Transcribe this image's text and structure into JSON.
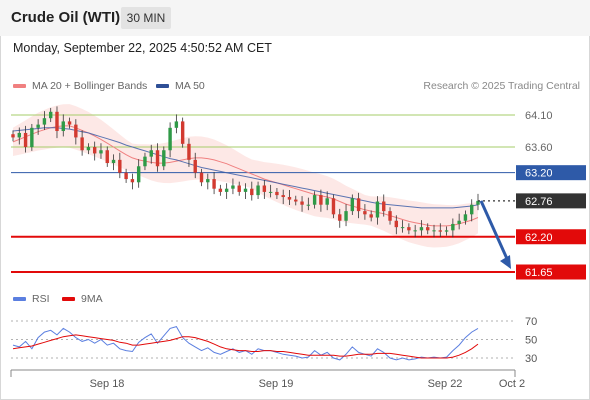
{
  "header": {
    "title": "Crude Oil (WTI)",
    "timeframe": "30 MIN"
  },
  "datetime": "Monday, September 22, 2025 4:50:52 AM CET",
  "legend_main": {
    "item1": "MA 20 + Bollinger Bands",
    "item2": "MA 50"
  },
  "credit": "Research © 2025 Trading Central",
  "legend_rsi": {
    "item1": "RSI",
    "item2": "9MA"
  },
  "colors": {
    "ma20": "#f08080",
    "ma50": "#3e5fa8",
    "band": "#fde5e3",
    "up": "#2f9a47",
    "down": "#d23a30",
    "support": "#e20a0a",
    "pivot": "#2e5aa8",
    "resistance": "#a6cc6a",
    "rsi": "#5b7fe0",
    "rsi_ma": "#e20a0a",
    "current_tag": "#333333",
    "forecast_arrow": "#2e5aa8"
  },
  "chart_data": [
    {
      "type": "candlestick",
      "title": "Crude Oil (WTI) 30 MIN",
      "y_range": [
        61.4,
        64.5
      ],
      "x_ticks": [
        "Sep 18",
        "Sep 19",
        "Sep 22",
        "Oct 2"
      ],
      "current_price": 62.76,
      "levels": [
        {
          "name": "resistance 2",
          "value": 64.1,
          "label": "64.10"
        },
        {
          "name": "resistance 1",
          "value": 63.6,
          "label": "63.60"
        },
        {
          "name": "pivot",
          "value": 63.2,
          "label": "63.20"
        },
        {
          "name": "support 1",
          "value": 62.2,
          "label": "62.20"
        },
        {
          "name": "support 2",
          "value": 61.65,
          "label": "61.65"
        }
      ],
      "forecast": {
        "from": 62.76,
        "to": 61.65,
        "direction": "down"
      },
      "close_series": [
        63.75,
        63.82,
        63.6,
        63.9,
        63.95,
        64.05,
        64.15,
        63.85,
        64.0,
        63.95,
        63.75,
        63.55,
        63.6,
        63.5,
        63.55,
        63.35,
        63.4,
        63.2,
        63.1,
        63.05,
        63.3,
        63.45,
        63.55,
        63.3,
        63.55,
        63.9,
        64.0,
        63.65,
        63.4,
        63.2,
        63.05,
        63.1,
        62.95,
        62.9,
        62.95,
        63.0,
        62.9,
        62.95,
        62.85,
        63.0,
        62.9,
        62.9,
        62.85,
        62.82,
        62.78,
        62.75,
        62.7,
        62.7,
        62.85,
        62.7,
        62.8,
        62.55,
        62.45,
        62.6,
        62.8,
        62.6,
        62.55,
        62.5,
        62.75,
        62.6,
        62.45,
        62.35,
        62.35,
        62.3,
        62.3,
        62.35,
        62.3,
        62.3,
        62.28,
        62.3,
        62.4,
        62.45,
        62.55,
        62.7,
        62.76
      ],
      "ma20": [
        63.68,
        63.72,
        63.76,
        63.8,
        63.84,
        63.87,
        63.9,
        63.92,
        63.93,
        63.93,
        63.9,
        63.86,
        63.82,
        63.77,
        63.72,
        63.66,
        63.6,
        63.54,
        63.48,
        63.43,
        63.4,
        63.38,
        63.36,
        63.35,
        63.35,
        63.36,
        63.38,
        63.4,
        63.42,
        63.43,
        63.43,
        63.42,
        63.4,
        63.37,
        63.34,
        63.3,
        63.26,
        63.22,
        63.18,
        63.14,
        63.1,
        63.07,
        63.04,
        63.01,
        62.98,
        62.95,
        62.92,
        62.89,
        62.86,
        62.84,
        62.82,
        62.79,
        62.75,
        62.71,
        62.68,
        62.65,
        62.62,
        62.6,
        62.58,
        62.56,
        62.53,
        62.5,
        62.47,
        62.44,
        62.42,
        62.4,
        62.38,
        62.37,
        62.37,
        62.37,
        62.38,
        62.4,
        62.43,
        62.46,
        62.5
      ],
      "ma50": [
        63.85,
        63.86,
        63.87,
        63.88,
        63.89,
        63.9,
        63.9,
        63.9,
        63.89,
        63.88,
        63.86,
        63.84,
        63.82,
        63.79,
        63.76,
        63.73,
        63.7,
        63.67,
        63.63,
        63.6,
        63.57,
        63.54,
        63.51,
        63.48,
        63.45,
        63.42,
        63.4,
        63.37,
        63.34,
        63.31,
        63.28,
        63.26,
        63.24,
        63.22,
        63.2,
        63.18,
        63.16,
        63.14,
        63.12,
        63.1,
        63.08,
        63.06,
        63.04,
        63.02,
        63.0,
        62.98,
        62.96,
        62.94,
        62.92,
        62.9,
        62.88,
        62.86,
        62.84,
        62.82,
        62.8,
        62.78,
        62.76,
        62.74,
        62.72,
        62.71,
        62.7,
        62.69,
        62.68,
        62.67,
        62.66,
        62.65,
        62.65,
        62.65,
        62.65,
        62.65,
        62.65,
        62.66,
        62.67,
        62.68,
        62.7
      ],
      "legend": [
        "MA 20 + Bollinger Bands",
        "MA 50"
      ]
    },
    {
      "type": "line",
      "title": "RSI",
      "y_ticks": [
        70,
        50,
        30
      ],
      "y_range": [
        20,
        80
      ],
      "series": [
        {
          "name": "RSI",
          "values": [
            44,
            42,
            48,
            40,
            52,
            58,
            60,
            55,
            62,
            58,
            52,
            48,
            50,
            46,
            50,
            44,
            46,
            40,
            38,
            37,
            47,
            52,
            56,
            46,
            54,
            62,
            64,
            52,
            46,
            42,
            38,
            41,
            36,
            34,
            37,
            40,
            36,
            38,
            34,
            40,
            38,
            38,
            36,
            34,
            33,
            32,
            30,
            31,
            38,
            33,
            36,
            30,
            28,
            34,
            42,
            36,
            34,
            32,
            40,
            36,
            30,
            28,
            30,
            28,
            29,
            31,
            30,
            31,
            30,
            31,
            38,
            44,
            52,
            58,
            62
          ]
        },
        {
          "name": "9MA",
          "values": [
            40,
            41,
            42,
            43,
            45,
            47,
            49,
            51,
            53,
            54,
            55,
            54,
            53,
            52,
            51,
            50,
            49,
            47,
            46,
            44,
            44,
            45,
            46,
            47,
            48,
            49,
            51,
            53,
            53,
            52,
            50,
            48,
            45,
            42,
            40,
            39,
            38,
            38,
            37,
            37,
            38,
            38,
            37,
            37,
            36,
            35,
            34,
            33,
            33,
            33,
            33,
            33,
            32,
            32,
            33,
            34,
            34,
            34,
            35,
            35,
            35,
            34,
            33,
            32,
            31,
            30,
            30,
            30,
            30,
            30,
            31,
            33,
            36,
            40,
            45
          ]
        }
      ],
      "legend": [
        "RSI",
        "9MA"
      ]
    }
  ]
}
